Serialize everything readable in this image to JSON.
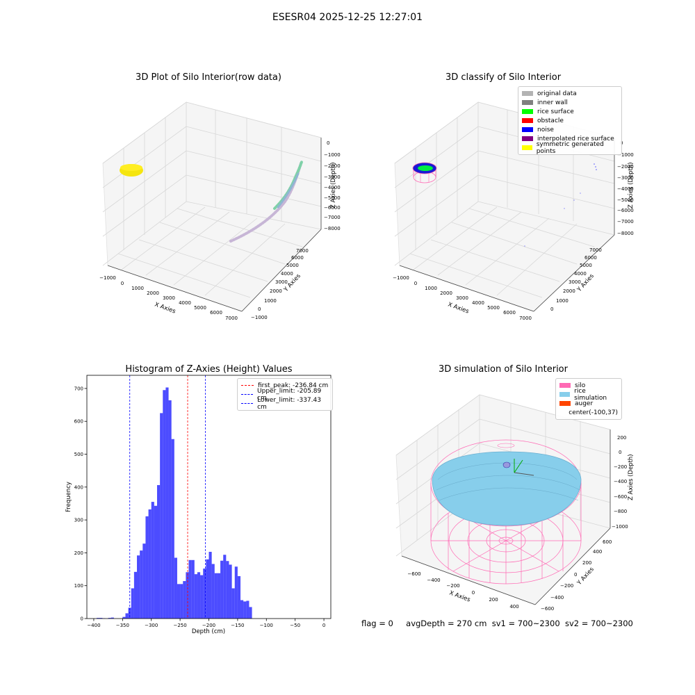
{
  "suptitle": "ESESR04 2025-12-25 12:27:01",
  "panels": {
    "raw": {
      "title": "3D Plot of Silo Interior(row data)",
      "xlabel": "X Axies",
      "ylabel": "Y Axies",
      "zlabel": "Z Axies (Depth)",
      "xticks": [
        "−1000",
        "0",
        "1000",
        "2000",
        "3000",
        "4000",
        "5000",
        "6000",
        "7000"
      ],
      "yticks": [
        "−1000",
        "0",
        "1000",
        "2000",
        "3000",
        "4000",
        "5000",
        "6000",
        "7000"
      ],
      "zticks": [
        "0",
        "−1000",
        "−2000",
        "−3000",
        "−4000",
        "−5000",
        "−6000",
        "−7000",
        "−8000"
      ]
    },
    "classify": {
      "title": "3D classify of Silo Interior",
      "xlabel": "X Axies",
      "ylabel": "Y Axies",
      "zlabel": "Z Axies (Depth)",
      "xticks": [
        "−1000",
        "0",
        "1000",
        "2000",
        "3000",
        "4000",
        "5000",
        "6000",
        "7000"
      ],
      "yticks": [
        "0",
        "1000",
        "2000",
        "3000",
        "4000",
        "5000",
        "6000",
        "7000"
      ],
      "zticks": [
        "0",
        "−1000",
        "−2000",
        "−3000",
        "−4000",
        "−5000",
        "−6000",
        "−7000",
        "−8000"
      ],
      "legend": [
        {
          "label": "original data",
          "color": "#b3b3b3"
        },
        {
          "label": "inner wall",
          "color": "#808080"
        },
        {
          "label": "rice surface",
          "color": "#00ff00"
        },
        {
          "label": "obstacle",
          "color": "#ff0000"
        },
        {
          "label": "noise",
          "color": "#0000ff"
        },
        {
          "label": "interpolated rice surface",
          "color": "#800080"
        },
        {
          "label": "symmetric generated points",
          "color": "#ffff00"
        }
      ]
    },
    "simulation": {
      "title": "3D simulation of Silo Interior",
      "xlabel": "X Axies",
      "ylabel": "Y Axies",
      "zlabel": "Z Axies (Depth)",
      "xticks": [
        "−600",
        "−400",
        "−200",
        "0",
        "200",
        "400"
      ],
      "yticks": [
        "−600",
        "−400",
        "−200",
        "0",
        "200",
        "400",
        "600"
      ],
      "zticks": [
        "200",
        "0",
        "−200",
        "−400",
        "−600",
        "−800",
        "−1000"
      ],
      "legend": [
        {
          "label": "silo",
          "color": "#ff69b4"
        },
        {
          "label": "rice simulation",
          "color": "#87ceeb"
        },
        {
          "label": "auger",
          "color": "#ff4500"
        },
        {
          "label": "center(-100,37)",
          "color": ""
        }
      ]
    }
  },
  "status": {
    "flag": "flag = 0",
    "avg_depth": "avgDepth = 270 cm",
    "sv1": "sv1 = 700~2300",
    "sv2": "sv2 = 700~2300"
  },
  "chart_data": [
    {
      "type": "histogram",
      "title": "Histogram of Z-Axies (Height) Values",
      "xlabel": "Depth (cm)",
      "ylabel": "Frequency",
      "xlim": [
        -412,
        12
      ],
      "ylim": [
        0,
        740
      ],
      "xticks": [
        -400,
        -350,
        -300,
        -250,
        -200,
        -150,
        -100,
        -50,
        0
      ],
      "yticks": [
        0,
        100,
        200,
        300,
        400,
        500,
        600,
        700
      ],
      "bar_color": "#0000ff",
      "bins": [
        {
          "x0": -395,
          "x1": -385,
          "count": 2
        },
        {
          "x0": -385,
          "x1": -380,
          "count": 1
        },
        {
          "x0": -375,
          "x1": -370,
          "count": 2
        },
        {
          "x0": -370,
          "x1": -365,
          "count": 3
        },
        {
          "x0": -350,
          "x1": -345,
          "count": 5
        },
        {
          "x0": -345,
          "x1": -340,
          "count": 16
        },
        {
          "x0": -340,
          "x1": -335,
          "count": 33
        },
        {
          "x0": -335,
          "x1": -330,
          "count": 92
        },
        {
          "x0": -330,
          "x1": -325,
          "count": 142
        },
        {
          "x0": -325,
          "x1": -320,
          "count": 192
        },
        {
          "x0": -320,
          "x1": -315,
          "count": 207
        },
        {
          "x0": -315,
          "x1": -310,
          "count": 228
        },
        {
          "x0": -310,
          "x1": -305,
          "count": 311
        },
        {
          "x0": -305,
          "x1": -300,
          "count": 332
        },
        {
          "x0": -300,
          "x1": -295,
          "count": 355
        },
        {
          "x0": -295,
          "x1": -290,
          "count": 343
        },
        {
          "x0": -290,
          "x1": -285,
          "count": 406
        },
        {
          "x0": -285,
          "x1": -280,
          "count": 625
        },
        {
          "x0": -280,
          "x1": -275,
          "count": 695
        },
        {
          "x0": -275,
          "x1": -270,
          "count": 703
        },
        {
          "x0": -270,
          "x1": -265,
          "count": 664
        },
        {
          "x0": -265,
          "x1": -260,
          "count": 546
        },
        {
          "x0": -260,
          "x1": -255,
          "count": 185
        },
        {
          "x0": -255,
          "x1": -250,
          "count": 105
        },
        {
          "x0": -250,
          "x1": -245,
          "count": 105
        },
        {
          "x0": -245,
          "x1": -240,
          "count": 114
        },
        {
          "x0": -240,
          "x1": -235,
          "count": 141
        },
        {
          "x0": -235,
          "x1": -230,
          "count": 178
        },
        {
          "x0": -230,
          "x1": -225,
          "count": 178
        },
        {
          "x0": -225,
          "x1": -220,
          "count": 135
        },
        {
          "x0": -220,
          "x1": -215,
          "count": 141
        },
        {
          "x0": -215,
          "x1": -210,
          "count": 132
        },
        {
          "x0": -210,
          "x1": -205,
          "count": 152
        },
        {
          "x0": -205,
          "x1": -200,
          "count": 180
        },
        {
          "x0": -200,
          "x1": -195,
          "count": 203
        },
        {
          "x0": -195,
          "x1": -190,
          "count": 166
        },
        {
          "x0": -190,
          "x1": -185,
          "count": 138
        },
        {
          "x0": -185,
          "x1": -180,
          "count": 138
        },
        {
          "x0": -180,
          "x1": -175,
          "count": 176
        },
        {
          "x0": -175,
          "x1": -170,
          "count": 194
        },
        {
          "x0": -170,
          "x1": -165,
          "count": 175
        },
        {
          "x0": -165,
          "x1": -160,
          "count": 164
        },
        {
          "x0": -160,
          "x1": -155,
          "count": 92
        },
        {
          "x0": -155,
          "x1": -150,
          "count": 158
        },
        {
          "x0": -150,
          "x1": -145,
          "count": 129
        },
        {
          "x0": -145,
          "x1": -140,
          "count": 56
        },
        {
          "x0": -140,
          "x1": -135,
          "count": 52
        },
        {
          "x0": -135,
          "x1": -130,
          "count": 54
        },
        {
          "x0": -130,
          "x1": -125,
          "count": 35
        }
      ],
      "vlines": [
        {
          "label": "first_peak: -236.84 cm",
          "x": -236.84,
          "color": "#ff0000"
        },
        {
          "label": "Upper_limit: -205.89 cm",
          "x": -205.89,
          "color": "#0000ff"
        },
        {
          "label": "Lower_limit: -337.43 cm",
          "x": -337.43,
          "color": "#0000ff"
        }
      ],
      "legend_position": "upper right"
    }
  ]
}
